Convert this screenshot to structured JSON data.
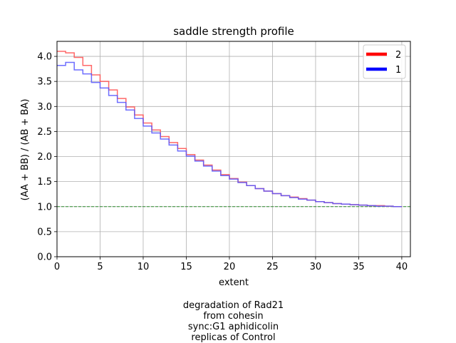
{
  "chart_data": {
    "type": "line",
    "title": "saddle strength profile",
    "xlabel": "extent",
    "ylabel": "(AA + BB) / (AB + BA)",
    "xlim": [
      0,
      41
    ],
    "ylim": [
      0,
      4.3
    ],
    "xticks": [
      "0",
      "5",
      "10",
      "15",
      "20",
      "25",
      "30",
      "35",
      "40"
    ],
    "yticks": [
      "0.0",
      "0.5",
      "1.0",
      "1.5",
      "2.0",
      "2.5",
      "3.0",
      "3.5",
      "4.0"
    ],
    "grid": true,
    "legend_position": "top-right",
    "step": "post",
    "reference_line": {
      "y": 1.0,
      "style": "dashed",
      "color": "#2e8b2e"
    },
    "x": [
      0,
      1,
      2,
      3,
      4,
      5,
      6,
      7,
      8,
      9,
      10,
      11,
      12,
      13,
      14,
      15,
      16,
      17,
      18,
      19,
      20,
      21,
      22,
      23,
      24,
      25,
      26,
      27,
      28,
      29,
      30,
      31,
      32,
      33,
      34,
      35,
      36,
      37,
      38,
      39
    ],
    "series": [
      {
        "name": "2",
        "color": "#ff4d4d",
        "legend_color": "#ff0000",
        "values": [
          4.1,
          4.07,
          3.98,
          3.82,
          3.63,
          3.5,
          3.33,
          3.16,
          2.99,
          2.83,
          2.67,
          2.53,
          2.4,
          2.28,
          2.16,
          2.04,
          1.93,
          1.83,
          1.73,
          1.64,
          1.56,
          1.49,
          1.42,
          1.36,
          1.31,
          1.26,
          1.22,
          1.19,
          1.16,
          1.13,
          1.1,
          1.08,
          1.06,
          1.05,
          1.04,
          1.03,
          1.02,
          1.02,
          1.01,
          1.0
        ]
      },
      {
        "name": "1",
        "color": "#5555ff",
        "legend_color": "#0000ff",
        "values": [
          3.82,
          3.88,
          3.73,
          3.65,
          3.48,
          3.37,
          3.22,
          3.08,
          2.93,
          2.76,
          2.61,
          2.47,
          2.35,
          2.23,
          2.11,
          2.01,
          1.91,
          1.81,
          1.71,
          1.62,
          1.55,
          1.48,
          1.42,
          1.36,
          1.31,
          1.26,
          1.22,
          1.18,
          1.15,
          1.13,
          1.1,
          1.08,
          1.06,
          1.05,
          1.04,
          1.03,
          1.02,
          1.01,
          1.01,
          1.0
        ]
      }
    ]
  },
  "caption": {
    "lines": [
      "degradation of Rad21",
      "from cohesin",
      "sync:G1 aphidicolin",
      "replicas of Control"
    ]
  }
}
